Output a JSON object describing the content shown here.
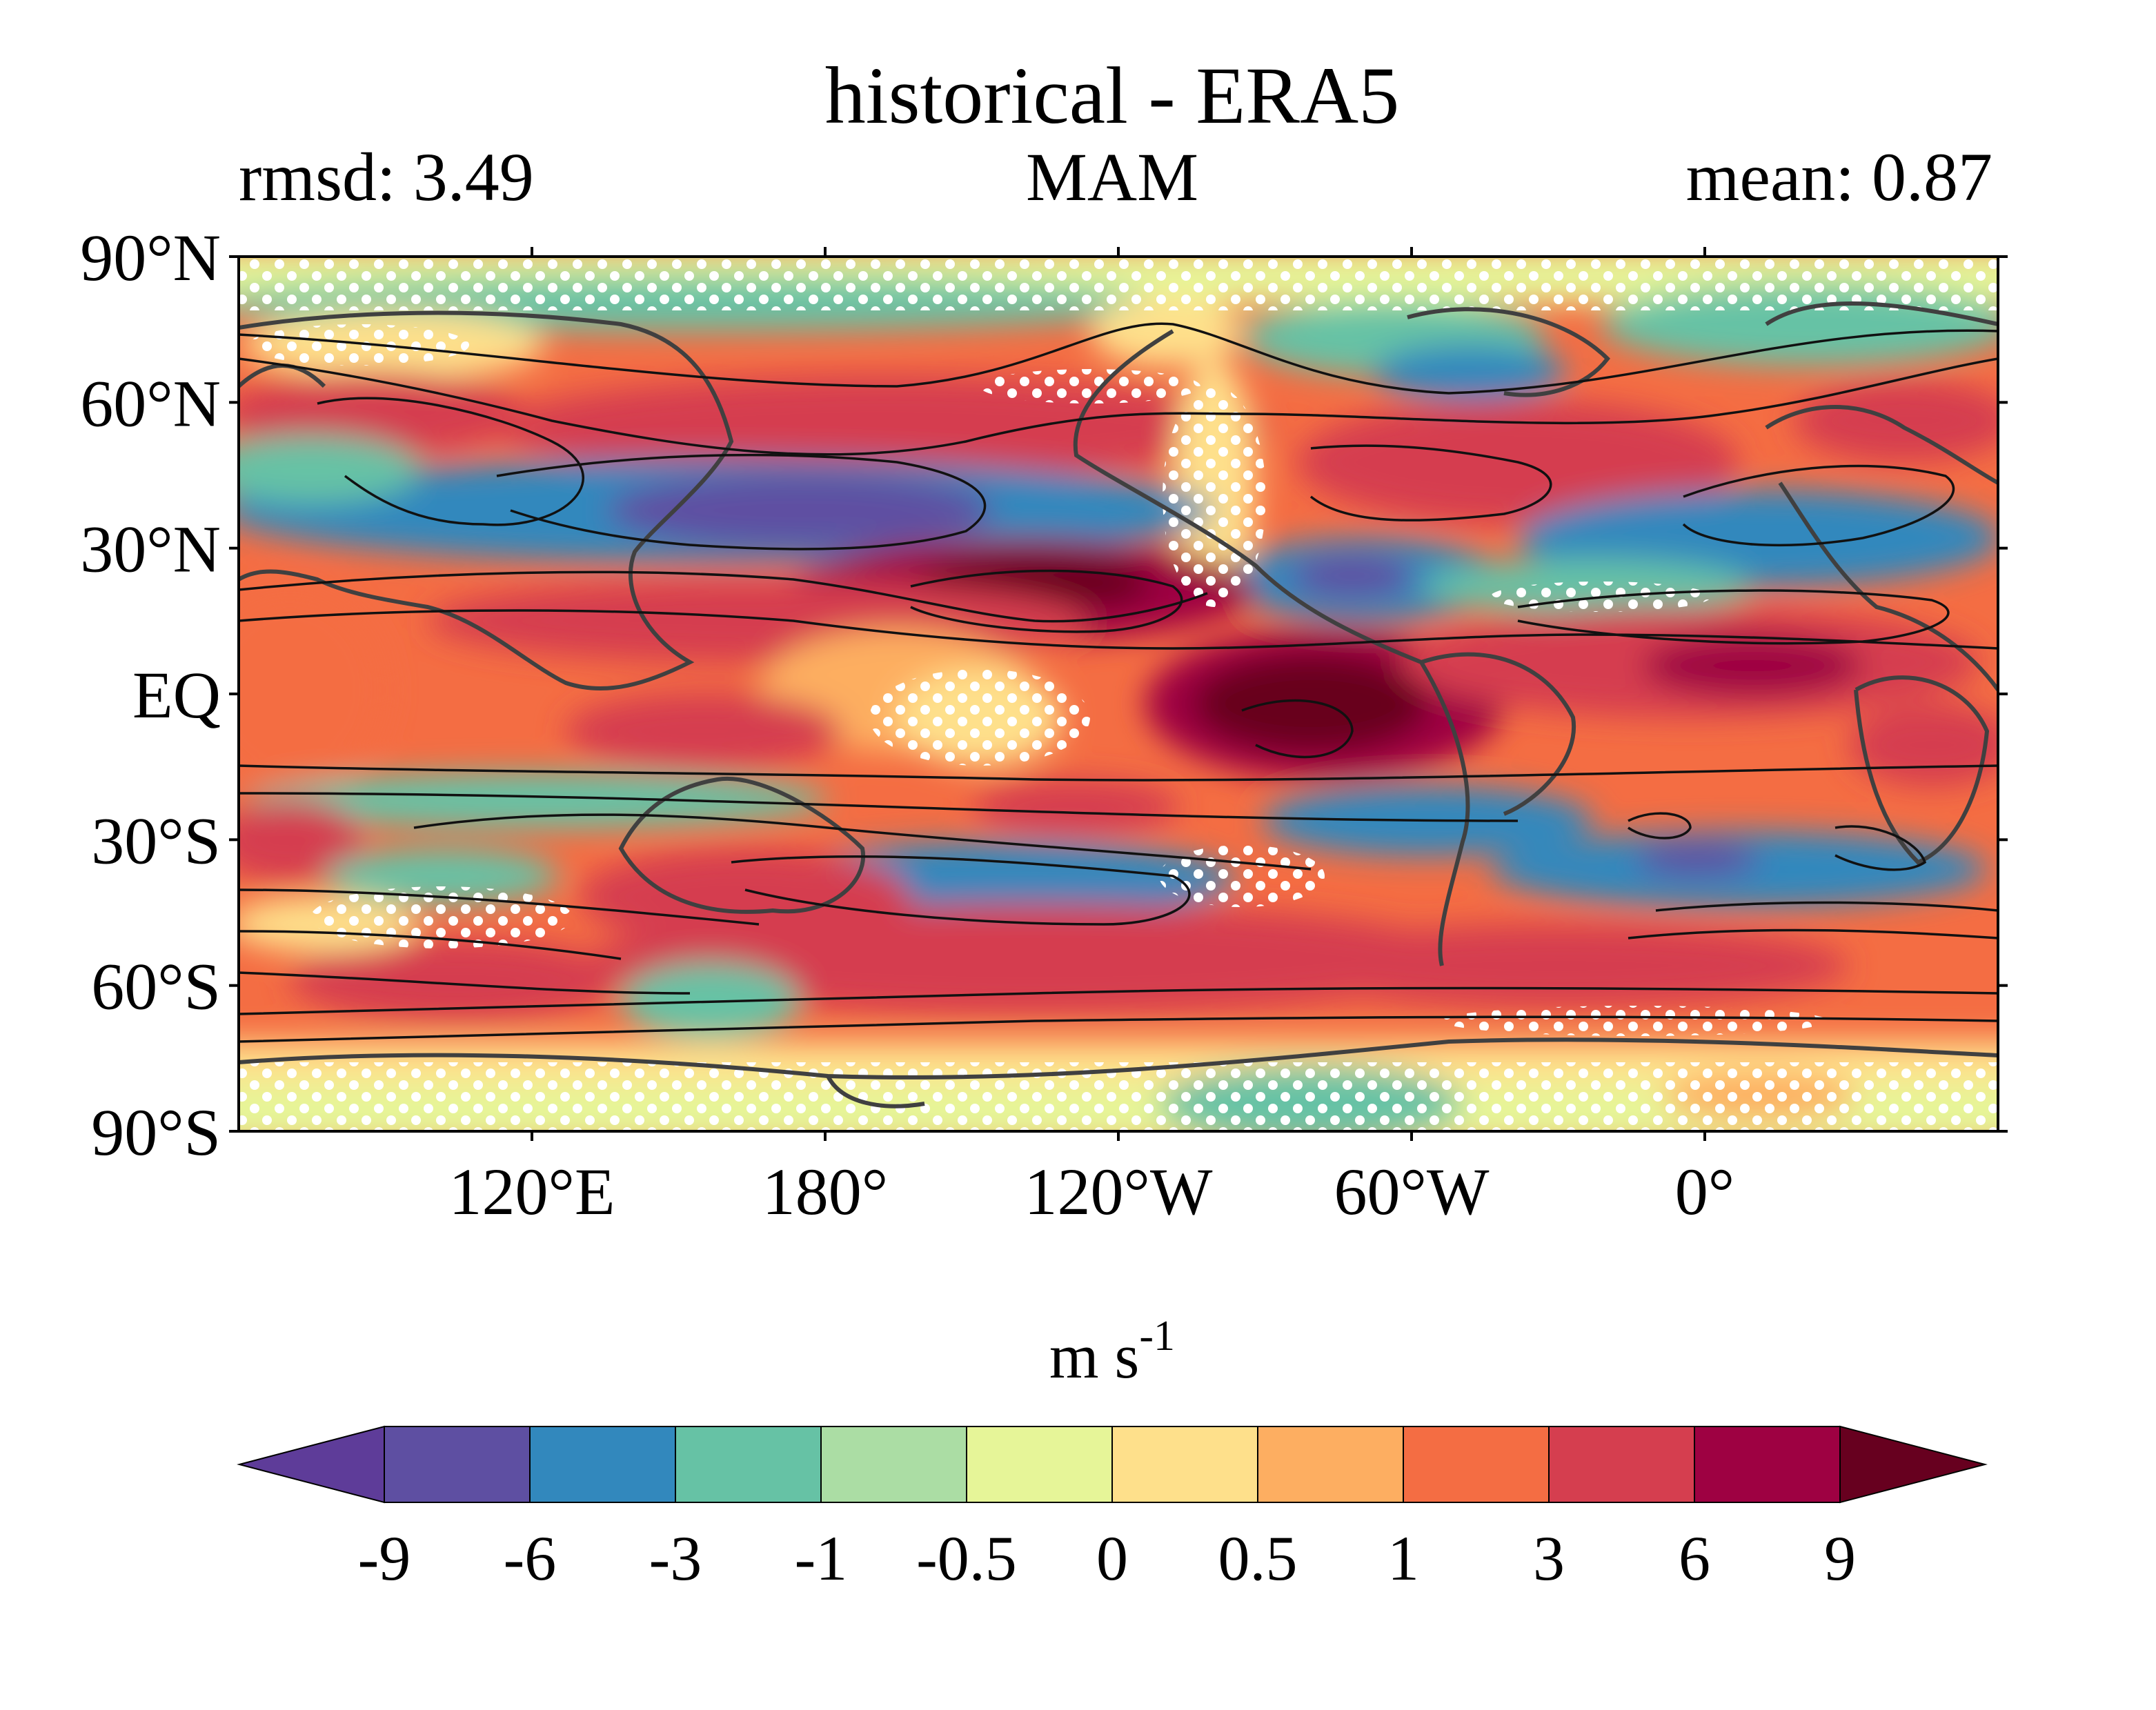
{
  "title": "historical - ERA5",
  "left_stat": "rmsd: 3.49",
  "center_label": "MAM",
  "right_stat": "mean: 0.87",
  "map": {
    "projection": "PlateCarree",
    "lon_range": [
      60,
      420
    ],
    "lat_range": [
      -90,
      90
    ],
    "lat_ticks": [
      {
        "lat": 90,
        "label": "90°N"
      },
      {
        "lat": 60,
        "label": "60°N"
      },
      {
        "lat": 30,
        "label": "30°N"
      },
      {
        "lat": 0,
        "label": "EQ"
      },
      {
        "lat": -30,
        "label": "30°S"
      },
      {
        "lat": -60,
        "label": "60°S"
      },
      {
        "lat": -90,
        "label": "90°S"
      }
    ],
    "lon_ticks": [
      {
        "lon": 120,
        "label": "120°E"
      },
      {
        "lon": 180,
        "label": "180°"
      },
      {
        "lon": 240,
        "label": "120°W"
      },
      {
        "lon": 300,
        "label": "60°W"
      },
      {
        "lon": 360,
        "label": "0°"
      }
    ],
    "stippling": "white dots",
    "coastlines": "dark grey",
    "contours": "black"
  },
  "colorbar": {
    "units_base": "m s",
    "units_exp": "-1",
    "extend": "both",
    "levels": [
      "-9",
      "-6",
      "-3",
      "-1",
      "-0.5",
      "0",
      "0.5",
      "1",
      "3",
      "6",
      "9"
    ],
    "colors": [
      "#5e3c99",
      "#5e4fa2",
      "#3288bd",
      "#66c2a5",
      "#abdda4",
      "#e6f598",
      "#fee08b",
      "#fdae61",
      "#f46d43",
      "#d53e4f",
      "#9e0142",
      "#67001f"
    ]
  }
}
